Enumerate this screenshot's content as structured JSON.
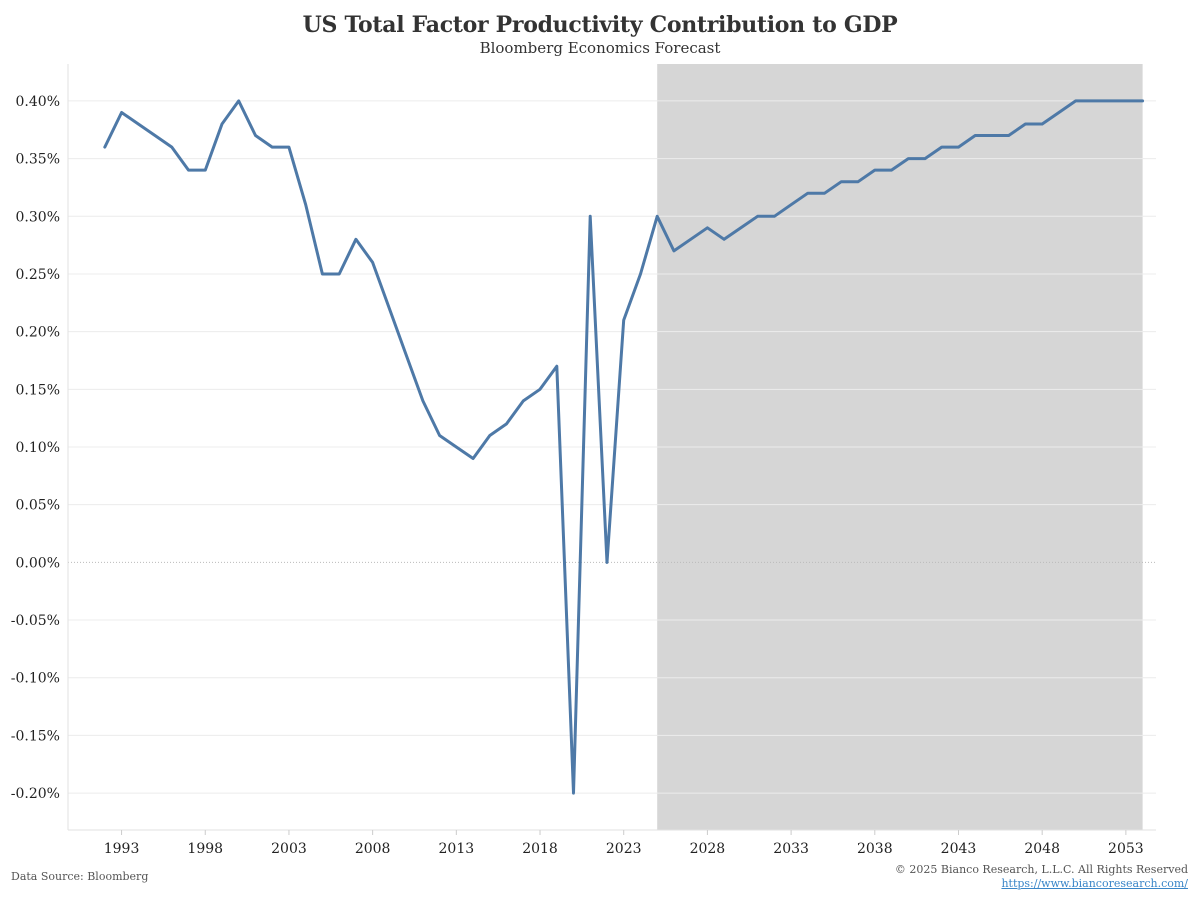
{
  "header": {
    "title": "US Total Factor Productivity Contribution to GDP",
    "subtitle": "Bloomberg Economics Forecast"
  },
  "footer": {
    "source": "Data Source: Bloomberg",
    "copyright": "© 2025 Bianco Research, L.L.C. All Rights Reserved",
    "url": "https://www.biancoresearch.com/"
  },
  "chart_data": {
    "type": "line",
    "title": "US Total Factor Productivity Contribution to GDP",
    "subtitle": "Bloomberg Economics Forecast",
    "xlabel": "",
    "ylabel": "",
    "xlim": [
      1989.8,
      2054.8
    ],
    "ylim": [
      -0.232,
      0.432
    ],
    "x_ticks": [
      1993,
      1998,
      2003,
      2008,
      2013,
      2018,
      2023,
      2028,
      2033,
      2038,
      2043,
      2048,
      2053
    ],
    "y_ticks": [
      0.4,
      0.35,
      0.3,
      0.25,
      0.2,
      0.15,
      0.1,
      0.05,
      0.0,
      -0.05,
      -0.1,
      -0.15,
      -0.2
    ],
    "y_tick_labels": [
      "0.40%",
      "0.35%",
      "0.30%",
      "0.25%",
      "0.20%",
      "0.15%",
      "0.10%",
      "0.05%",
      "0.00%",
      "-0.05%",
      "-0.10%",
      "-0.15%",
      "-0.20%"
    ],
    "grid": true,
    "legend": "none",
    "forecast_shading": {
      "from": 2025,
      "to": 2054,
      "color": "#d6d6d6"
    },
    "series": [
      {
        "color": "#4e79a7",
        "x": [
          1992,
          1993,
          1994,
          1995,
          1996,
          1997,
          1998,
          1999,
          2000,
          2001,
          2002,
          2003,
          2004,
          2005,
          2006,
          2007,
          2008,
          2009,
          2010,
          2011,
          2012,
          2013,
          2014,
          2015,
          2016,
          2017,
          2018,
          2019,
          2020,
          2021,
          2022,
          2023,
          2024,
          2025,
          2026,
          2027,
          2028,
          2029,
          2030,
          2031,
          2032,
          2033,
          2034,
          2035,
          2036,
          2037,
          2038,
          2039,
          2040,
          2041,
          2042,
          2043,
          2044,
          2045,
          2046,
          2047,
          2048,
          2049,
          2050,
          2051,
          2052,
          2053,
          2054
        ],
        "values": [
          0.36,
          0.39,
          0.38,
          0.37,
          0.36,
          0.34,
          0.34,
          0.38,
          0.4,
          0.37,
          0.36,
          0.36,
          0.31,
          0.25,
          0.25,
          0.28,
          0.26,
          0.22,
          0.18,
          0.14,
          0.11,
          0.1,
          0.09,
          0.11,
          0.12,
          0.14,
          0.15,
          0.17,
          -0.2,
          0.3,
          0.0,
          0.21,
          0.25,
          0.3,
          0.27,
          0.28,
          0.29,
          0.28,
          0.29,
          0.3,
          0.3,
          0.31,
          0.32,
          0.32,
          0.33,
          0.33,
          0.34,
          0.34,
          0.35,
          0.35,
          0.36,
          0.36,
          0.37,
          0.37,
          0.37,
          0.38,
          0.38,
          0.39,
          0.4,
          0.4,
          0.4,
          0.4,
          0.4
        ]
      }
    ]
  }
}
